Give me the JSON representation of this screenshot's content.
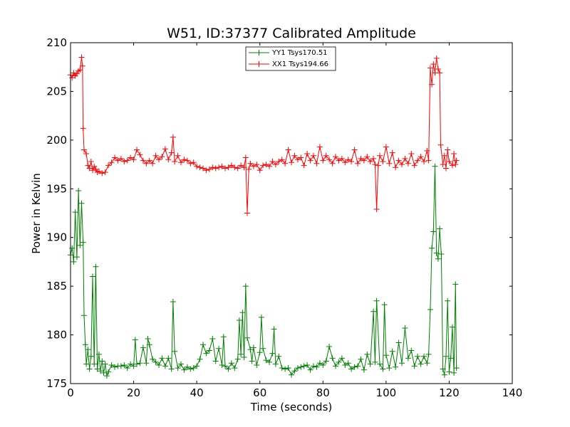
{
  "chart_data": {
    "type": "line",
    "title": "W51, ID:37377 Calibrated Amplitude",
    "xlabel": "Time (seconds)",
    "ylabel": "Power in Kelvin",
    "xlim": [
      0,
      140
    ],
    "ylim": [
      175,
      210
    ],
    "xticks": [
      "0",
      "20",
      "40",
      "60",
      "80",
      "100",
      "120",
      "140"
    ],
    "yticks": [
      "175",
      "180",
      "185",
      "190",
      "195",
      "200",
      "205",
      "210"
    ],
    "grid": false,
    "legend_position": "top-center",
    "marker": "+",
    "series": [
      {
        "name": "YY1 Tsys170.51",
        "color": "#008000",
        "points": [
          [
            0.0,
            188.2
          ],
          [
            0.5,
            188.9
          ],
          [
            1.0,
            187.5
          ],
          [
            1.5,
            192.6
          ],
          [
            2.0,
            188.0
          ],
          [
            2.5,
            194.8
          ],
          [
            3.0,
            189.2
          ],
          [
            3.5,
            193.5
          ],
          [
            4.0,
            189.5
          ],
          [
            4.3,
            182.0
          ],
          [
            4.7,
            179.0
          ],
          [
            5.0,
            177.0
          ],
          [
            5.5,
            178.5
          ],
          [
            6.0,
            176.5
          ],
          [
            6.5,
            177.8
          ],
          [
            7.0,
            186.0
          ],
          [
            7.5,
            177.0
          ],
          [
            8.0,
            187.0
          ],
          [
            8.5,
            176.5
          ],
          [
            9.0,
            178.0
          ],
          [
            9.5,
            176.3
          ],
          [
            10.0,
            177.3
          ],
          [
            10.5,
            176.1
          ],
          [
            11.0,
            177.0
          ],
          [
            11.5,
            175.8
          ],
          [
            12.0,
            176.2
          ],
          [
            13.0,
            176.9
          ],
          [
            14.0,
            176.7
          ],
          [
            15.0,
            176.8
          ],
          [
            16.0,
            176.8
          ],
          [
            17.0,
            176.9
          ],
          [
            18.0,
            176.6
          ],
          [
            19.0,
            177.0
          ],
          [
            20.0,
            176.8
          ],
          [
            20.5,
            179.5
          ],
          [
            21.0,
            177.0
          ],
          [
            22.0,
            177.1
          ],
          [
            23.0,
            178.7
          ],
          [
            24.0,
            177.1
          ],
          [
            24.5,
            179.6
          ],
          [
            25.0,
            179.0
          ],
          [
            26.0,
            177.5
          ],
          [
            27.0,
            177.2
          ],
          [
            28.0,
            176.9
          ],
          [
            29.0,
            177.6
          ],
          [
            30.0,
            176.8
          ],
          [
            31.0,
            177.6
          ],
          [
            32.0,
            176.5
          ],
          [
            32.5,
            183.4
          ],
          [
            33.0,
            178.3
          ],
          [
            34.0,
            176.6
          ],
          [
            35.0,
            177.0
          ],
          [
            36.0,
            176.4
          ],
          [
            37.0,
            176.7
          ],
          [
            38.0,
            176.5
          ],
          [
            39.0,
            176.6
          ],
          [
            40.0,
            176.8
          ],
          [
            41.0,
            177.5
          ],
          [
            42.0,
            179.0
          ],
          [
            43.0,
            178.1
          ],
          [
            44.0,
            178.4
          ],
          [
            45.0,
            179.6
          ],
          [
            46.0,
            177.3
          ],
          [
            47.0,
            178.6
          ],
          [
            48.0,
            176.9
          ],
          [
            48.5,
            179.8
          ],
          [
            49.0,
            176.8
          ],
          [
            50.0,
            176.5
          ],
          [
            51.0,
            177.1
          ],
          [
            52.0,
            176.6
          ],
          [
            53.0,
            177.5
          ],
          [
            53.5,
            181.5
          ],
          [
            54.0,
            178.0
          ],
          [
            54.5,
            182.3
          ],
          [
            55.0,
            177.7
          ],
          [
            55.5,
            185.0
          ],
          [
            56.0,
            179.7
          ],
          [
            57.0,
            178.5
          ],
          [
            57.5,
            177.3
          ],
          [
            58.0,
            178.7
          ],
          [
            59.0,
            176.9
          ],
          [
            60.0,
            178.2
          ],
          [
            60.5,
            181.8
          ],
          [
            61.0,
            178.6
          ],
          [
            62.0,
            177.4
          ],
          [
            63.0,
            177.2
          ],
          [
            64.0,
            178.1
          ],
          [
            64.5,
            180.6
          ],
          [
            65.0,
            177.0
          ],
          [
            66.0,
            177.8
          ],
          [
            67.0,
            176.6
          ],
          [
            68.0,
            176.5
          ],
          [
            69.0,
            176.6
          ],
          [
            70.0,
            175.9
          ],
          [
            71.0,
            176.3
          ],
          [
            72.0,
            176.6
          ],
          [
            73.0,
            176.7
          ],
          [
            74.0,
            176.8
          ],
          [
            75.0,
            176.9
          ],
          [
            76.0,
            176.4
          ],
          [
            77.0,
            176.8
          ],
          [
            78.0,
            176.7
          ],
          [
            79.0,
            177.1
          ],
          [
            80.0,
            176.9
          ],
          [
            81.0,
            177.3
          ],
          [
            82.0,
            178.8
          ],
          [
            83.0,
            177.6
          ],
          [
            84.0,
            176.8
          ],
          [
            85.0,
            177.2
          ],
          [
            86.0,
            177.6
          ],
          [
            87.0,
            176.9
          ],
          [
            88.0,
            177.1
          ],
          [
            89.0,
            176.5
          ],
          [
            90.0,
            176.7
          ],
          [
            91.0,
            176.8
          ],
          [
            92.0,
            177.5
          ],
          [
            93.0,
            176.4
          ],
          [
            94.0,
            178.0
          ],
          [
            95.0,
            177.0
          ],
          [
            96.0,
            182.4
          ],
          [
            96.5,
            177.2
          ],
          [
            97.0,
            183.5
          ],
          [
            98.0,
            177.0
          ],
          [
            99.0,
            176.5
          ],
          [
            99.5,
            183.1
          ],
          [
            100.0,
            177.9
          ],
          [
            101.0,
            176.6
          ],
          [
            102.0,
            178.3
          ],
          [
            103.0,
            176.7
          ],
          [
            104.0,
            179.2
          ],
          [
            105.0,
            177.1
          ],
          [
            106.0,
            180.7
          ],
          [
            107.0,
            177.6
          ],
          [
            108.0,
            178.4
          ],
          [
            109.0,
            176.8
          ],
          [
            110.0,
            177.8
          ],
          [
            111.0,
            177.0
          ],
          [
            112.0,
            177.8
          ],
          [
            113.0,
            177.1
          ],
          [
            113.5,
            178.0
          ],
          [
            114.0,
            182.6
          ],
          [
            114.5,
            188.9
          ],
          [
            115.0,
            190.6
          ],
          [
            115.5,
            197.3
          ],
          [
            116.0,
            188.4
          ],
          [
            116.5,
            187.8
          ],
          [
            117.0,
            190.9
          ],
          [
            117.5,
            188.3
          ],
          [
            118.0,
            176.5
          ],
          [
            118.5,
            175.9
          ],
          [
            119.0,
            177.8
          ],
          [
            119.5,
            183.5
          ],
          [
            120.0,
            176.2
          ],
          [
            120.5,
            177.6
          ],
          [
            121.0,
            180.8
          ],
          [
            121.5,
            176.1
          ],
          [
            122.0,
            185.2
          ],
          [
            122.3,
            176.6
          ]
        ]
      },
      {
        "name": "XX1 Tsys194.66",
        "color": "#ff0000",
        "points": [
          [
            0.0,
            206.7
          ],
          [
            0.5,
            206.4
          ],
          [
            1.0,
            206.9
          ],
          [
            1.5,
            206.6
          ],
          [
            2.0,
            206.8
          ],
          [
            2.5,
            207.1
          ],
          [
            3.0,
            207.2
          ],
          [
            3.5,
            208.5
          ],
          [
            3.8,
            207.6
          ],
          [
            4.0,
            201.2
          ],
          [
            4.3,
            199.0
          ],
          [
            5.0,
            198.6
          ],
          [
            5.5,
            197.4
          ],
          [
            6.0,
            197.1
          ],
          [
            6.5,
            197.8
          ],
          [
            7.0,
            196.9
          ],
          [
            7.5,
            197.3
          ],
          [
            8.0,
            197.0
          ],
          [
            8.5,
            196.7
          ],
          [
            9.0,
            196.8
          ],
          [
            10.0,
            196.6
          ],
          [
            11.0,
            196.7
          ],
          [
            12.0,
            197.4
          ],
          [
            13.0,
            197.7
          ],
          [
            14.0,
            198.2
          ],
          [
            15.0,
            197.9
          ],
          [
            16.0,
            198.1
          ],
          [
            17.0,
            197.8
          ],
          [
            18.0,
            197.9
          ],
          [
            19.0,
            198.2
          ],
          [
            20.0,
            198.0
          ],
          [
            21.0,
            199.0
          ],
          [
            22.0,
            198.5
          ],
          [
            23.0,
            197.9
          ],
          [
            24.0,
            197.6
          ],
          [
            25.0,
            197.9
          ],
          [
            26.0,
            197.6
          ],
          [
            27.0,
            198.4
          ],
          [
            28.0,
            198.0
          ],
          [
            29.0,
            198.3
          ],
          [
            30.0,
            199.1
          ],
          [
            31.0,
            198.0
          ],
          [
            32.0,
            198.7
          ],
          [
            32.5,
            200.3
          ],
          [
            33.0,
            197.8
          ],
          [
            34.0,
            198.4
          ],
          [
            35.0,
            197.7
          ],
          [
            36.0,
            198.0
          ],
          [
            37.0,
            197.9
          ],
          [
            38.0,
            197.6
          ],
          [
            39.0,
            197.7
          ],
          [
            40.0,
            197.3
          ],
          [
            41.0,
            197.2
          ],
          [
            42.0,
            197.1
          ],
          [
            43.0,
            196.9
          ],
          [
            44.0,
            197.0
          ],
          [
            45.0,
            197.2
          ],
          [
            46.0,
            197.1
          ],
          [
            47.0,
            197.2
          ],
          [
            48.0,
            197.3
          ],
          [
            49.0,
            197.1
          ],
          [
            50.0,
            197.2
          ],
          [
            51.0,
            197.4
          ],
          [
            52.0,
            197.2
          ],
          [
            53.0,
            197.1
          ],
          [
            54.0,
            197.4
          ],
          [
            55.0,
            197.2
          ],
          [
            55.5,
            198.2
          ],
          [
            56.0,
            192.5
          ],
          [
            56.5,
            197.0
          ],
          [
            57.0,
            197.6
          ],
          [
            58.0,
            197.3
          ],
          [
            59.0,
            197.5
          ],
          [
            60.0,
            196.9
          ],
          [
            61.0,
            197.4
          ],
          [
            62.0,
            197.5
          ],
          [
            63.0,
            197.3
          ],
          [
            64.0,
            197.8
          ],
          [
            65.0,
            197.5
          ],
          [
            66.0,
            197.8
          ],
          [
            67.0,
            198.0
          ],
          [
            68.0,
            197.6
          ],
          [
            69.0,
            199.0
          ],
          [
            70.0,
            197.7
          ],
          [
            71.0,
            198.4
          ],
          [
            72.0,
            198.0
          ],
          [
            73.0,
            198.2
          ],
          [
            74.0,
            197.4
          ],
          [
            75.0,
            198.6
          ],
          [
            76.0,
            197.9
          ],
          [
            77.0,
            198.4
          ],
          [
            78.0,
            197.6
          ],
          [
            79.0,
            199.3
          ],
          [
            80.0,
            197.9
          ],
          [
            81.0,
            198.4
          ],
          [
            82.0,
            198.0
          ],
          [
            83.0,
            197.6
          ],
          [
            84.0,
            198.3
          ],
          [
            85.0,
            197.9
          ],
          [
            86.0,
            198.1
          ],
          [
            87.0,
            197.7
          ],
          [
            88.0,
            198.0
          ],
          [
            89.0,
            197.8
          ],
          [
            90.0,
            199.0
          ],
          [
            91.0,
            197.6
          ],
          [
            92.0,
            198.1
          ],
          [
            93.0,
            197.9
          ],
          [
            94.0,
            198.3
          ],
          [
            95.0,
            197.8
          ],
          [
            96.0,
            198.1
          ],
          [
            96.5,
            197.5
          ],
          [
            97.0,
            192.9
          ],
          [
            97.5,
            197.4
          ],
          [
            98.0,
            198.4
          ],
          [
            99.0,
            197.8
          ],
          [
            100.0,
            199.3
          ],
          [
            101.0,
            197.6
          ],
          [
            102.0,
            198.7
          ],
          [
            103.0,
            197.2
          ],
          [
            104.0,
            197.9
          ],
          [
            105.0,
            197.5
          ],
          [
            106.0,
            198.1
          ],
          [
            107.0,
            197.6
          ],
          [
            108.0,
            198.6
          ],
          [
            109.0,
            197.4
          ],
          [
            110.0,
            197.9
          ],
          [
            111.0,
            198.3
          ],
          [
            112.0,
            197.8
          ],
          [
            113.0,
            198.9
          ],
          [
            113.5,
            197.9
          ],
          [
            114.0,
            207.4
          ],
          [
            114.5,
            205.7
          ],
          [
            115.0,
            207.8
          ],
          [
            115.5,
            206.9
          ],
          [
            116.0,
            208.4
          ],
          [
            116.5,
            207.3
          ],
          [
            117.0,
            206.9
          ],
          [
            117.3,
            199.5
          ],
          [
            118.0,
            197.5
          ],
          [
            118.5,
            198.4
          ],
          [
            119.0,
            197.1
          ],
          [
            119.5,
            199.0
          ],
          [
            120.0,
            197.8
          ],
          [
            121.0,
            197.4
          ],
          [
            121.5,
            198.6
          ],
          [
            122.0,
            197.5
          ],
          [
            122.3,
            197.9
          ]
        ]
      }
    ]
  }
}
